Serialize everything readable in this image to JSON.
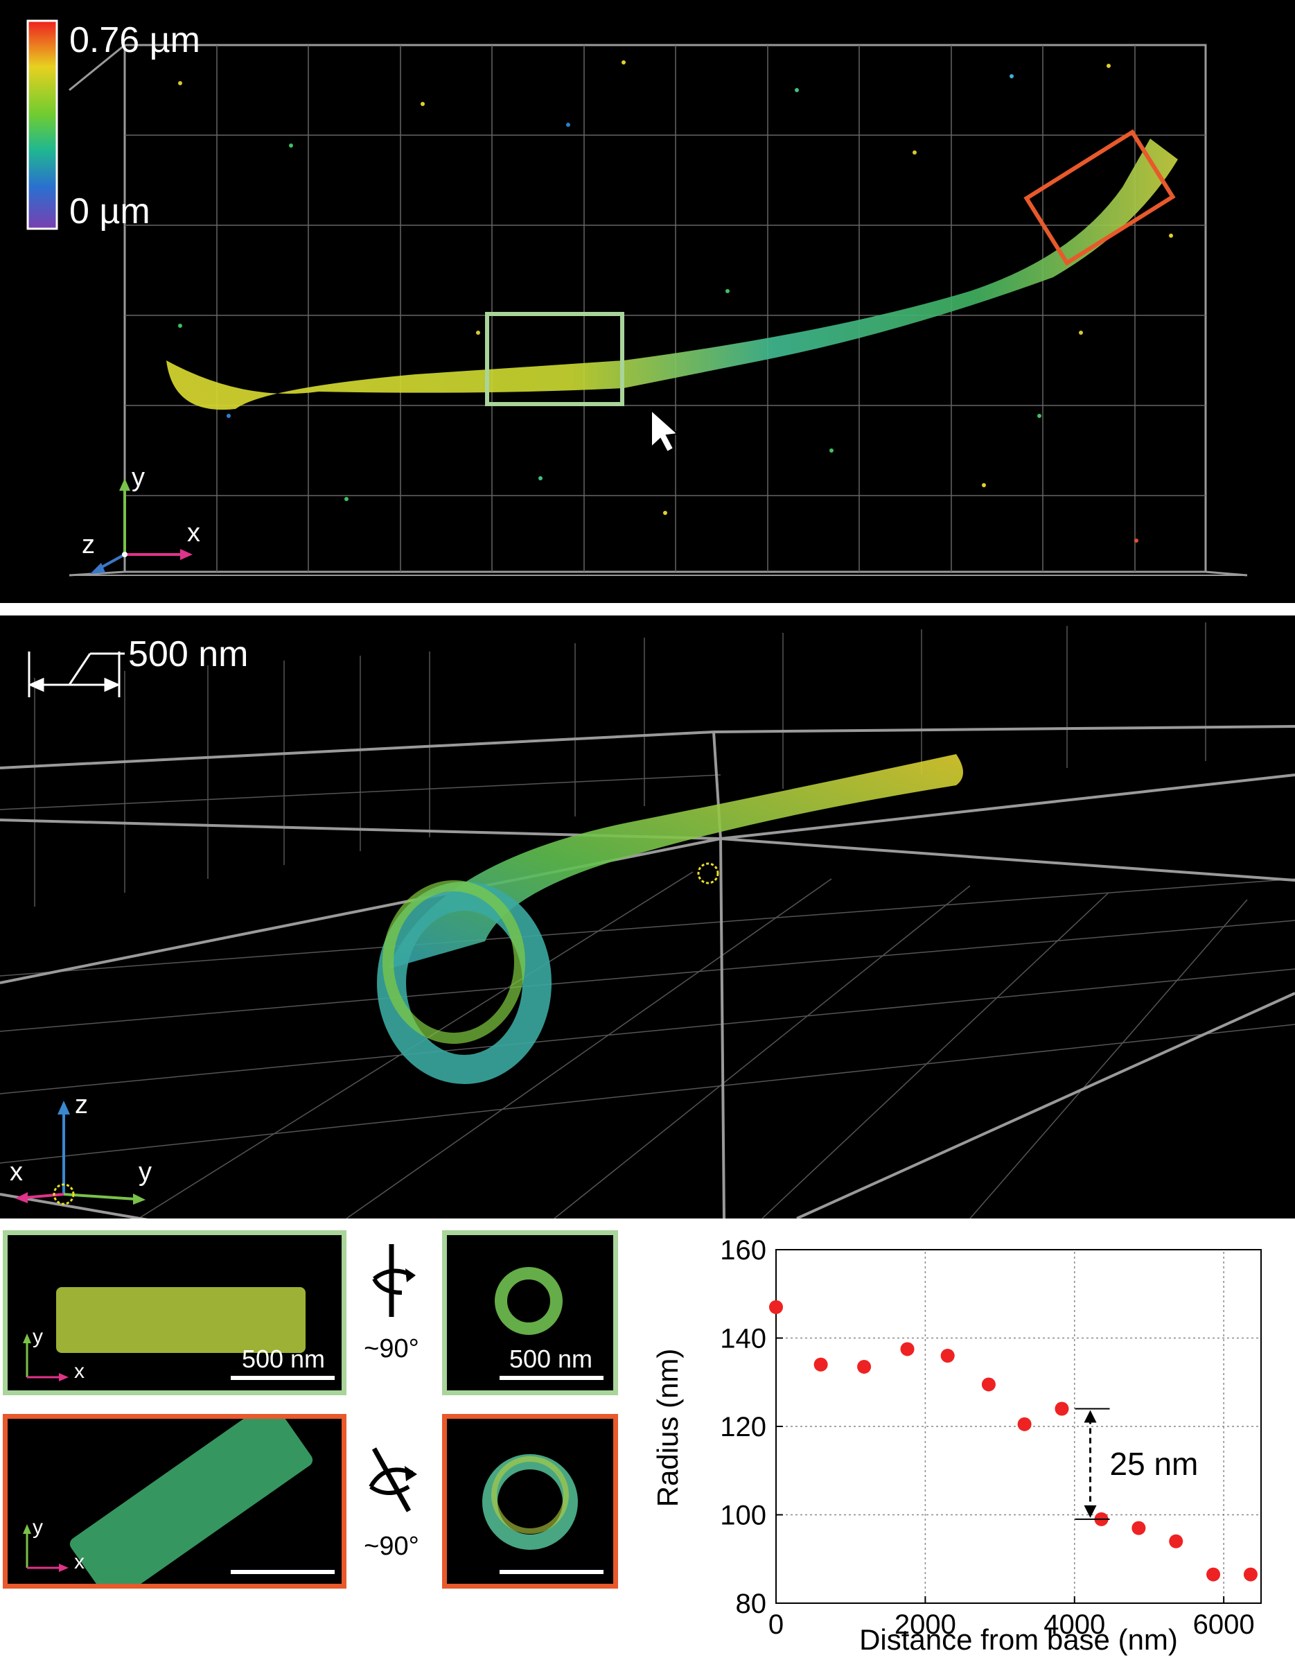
{
  "colorbar": {
    "max_label": "0.76 µm",
    "min_label": "0 µm"
  },
  "top_axes": {
    "x": "x",
    "y": "y",
    "z": "z"
  },
  "side_view": {
    "scale_label": "500 nm",
    "axis_x": "x",
    "axis_y": "y",
    "axis_z": "z"
  },
  "insets": {
    "green_axis_x": "x",
    "green_axis_y": "y",
    "green_scale": "500 nm",
    "green_end_scale": "500 nm",
    "orange_axis_x": "x",
    "orange_axis_y": "y",
    "rotation_top": "~90°",
    "rotation_bottom": "~90°"
  },
  "colors": {
    "green_box": "#a9d49a",
    "orange_box": "#e8592b",
    "points": "#ee2222"
  },
  "chart_data": {
    "type": "scatter",
    "xlabel": "Distance from base (nm)",
    "ylabel": "Radius (nm)",
    "xlim": [
      0,
      6500
    ],
    "ylim": [
      80,
      160
    ],
    "xticks": [
      0,
      2000,
      4000,
      6000
    ],
    "yticks": [
      80,
      100,
      120,
      140,
      160
    ],
    "grid": true,
    "points": [
      {
        "x": 0,
        "y": 147
      },
      {
        "x": 600,
        "y": 134
      },
      {
        "x": 1180,
        "y": 133.5
      },
      {
        "x": 1760,
        "y": 137.5
      },
      {
        "x": 2300,
        "y": 136
      },
      {
        "x": 2850,
        "y": 129.5
      },
      {
        "x": 3330,
        "y": 120.5
      },
      {
        "x": 3830,
        "y": 124
      },
      {
        "x": 4360,
        "y": 99
      },
      {
        "x": 4860,
        "y": 97
      },
      {
        "x": 5360,
        "y": 94
      },
      {
        "x": 5860,
        "y": 86.5
      },
      {
        "x": 6360,
        "y": 86.5
      }
    ],
    "annotation": {
      "text": "25 nm",
      "x": 4100,
      "y_top": 124,
      "y_bottom": 99
    }
  }
}
